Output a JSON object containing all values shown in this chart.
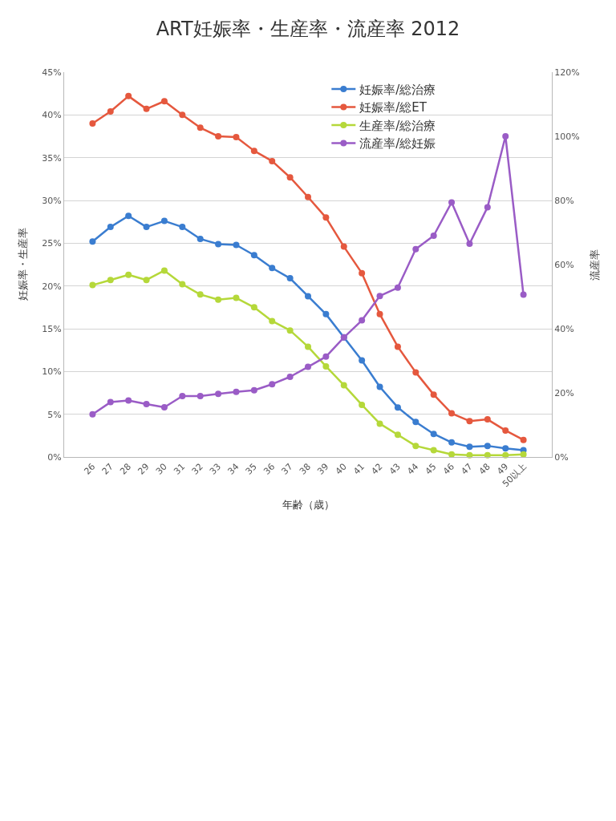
{
  "chart_data": {
    "type": "line",
    "title": "ART妊娠率・生産率・流産率 2012",
    "xlabel": "年齢（歳）",
    "ylabel": "妊娠率・生産率",
    "y2label": "流産率",
    "categories": [
      "26",
      "27",
      "28",
      "29",
      "30",
      "31",
      "32",
      "33",
      "34",
      "35",
      "36",
      "37",
      "38",
      "39",
      "40",
      "41",
      "42",
      "43",
      "44",
      "45",
      "46",
      "47",
      "48",
      "49",
      "50以上"
    ],
    "series": [
      {
        "name": "妊娠率/総治療",
        "color": "#3a7dd0",
        "values": [
          25.2,
          26.9,
          28.2,
          26.9,
          27.6,
          26.9,
          25.5,
          24.9,
          24.8,
          23.6,
          22.1,
          20.9,
          18.8,
          16.7,
          14.0,
          11.3,
          8.2,
          5.8,
          4.1,
          2.7,
          1.7,
          1.2,
          1.3,
          1.0,
          0.8
        ]
      },
      {
        "name": "妊娠率/総ET",
        "color": "#e5583e",
        "values": [
          39.0,
          40.4,
          42.2,
          40.7,
          41.6,
          40.0,
          38.5,
          37.5,
          37.4,
          35.8,
          34.6,
          32.7,
          30.4,
          28.0,
          24.6,
          21.5,
          16.7,
          12.9,
          9.9,
          7.3,
          5.1,
          4.2,
          4.4,
          3.1,
          2.0
        ]
      },
      {
        "name": "生産率/総治療",
        "color": "#b5d83a",
        "values": [
          20.1,
          20.7,
          21.3,
          20.7,
          21.8,
          20.2,
          19.0,
          18.4,
          18.6,
          17.5,
          15.9,
          14.8,
          12.9,
          10.6,
          8.4,
          6.1,
          3.9,
          2.6,
          1.3,
          0.8,
          0.3,
          0.2,
          0.2,
          0.2,
          0.3
        ]
      },
      {
        "name": "流産率/総妊娠",
        "color": "#9a5cc6",
        "axis": "y2",
        "values": [
          13.3,
          17.1,
          17.6,
          16.5,
          15.5,
          19.0,
          19.0,
          19.7,
          20.3,
          20.8,
          22.7,
          25.0,
          28.1,
          31.3,
          37.3,
          42.6,
          50.2,
          52.8,
          64.8,
          69.0,
          79.4,
          66.5,
          77.9,
          100.0,
          50.6
        ]
      }
    ],
    "ylim": [
      0,
      45
    ],
    "yticks": [
      {
        "value": 0,
        "label": "0%"
      },
      {
        "value": 5,
        "label": "5%"
      },
      {
        "value": 10,
        "label": "10%"
      },
      {
        "value": 15,
        "label": "15%"
      },
      {
        "value": 20,
        "label": "20%"
      },
      {
        "value": 25,
        "label": "25%"
      },
      {
        "value": 30,
        "label": "30%"
      },
      {
        "value": 35,
        "label": "35%"
      },
      {
        "value": 40,
        "label": "40%"
      },
      {
        "value": 45,
        "label": "45%"
      }
    ],
    "y2lim": [
      0,
      120
    ],
    "y2ticks": [
      {
        "value": 0,
        "label": "0%"
      },
      {
        "value": 20,
        "label": "20%"
      },
      {
        "value": 40,
        "label": "40%"
      },
      {
        "value": 60,
        "label": "60%"
      },
      {
        "value": 80,
        "label": "80%"
      },
      {
        "value": 100,
        "label": "100%"
      },
      {
        "value": 120,
        "label": "120%"
      }
    ],
    "grid": "y",
    "legend": "top right",
    "marker": "circle",
    "line_style": "solid"
  }
}
